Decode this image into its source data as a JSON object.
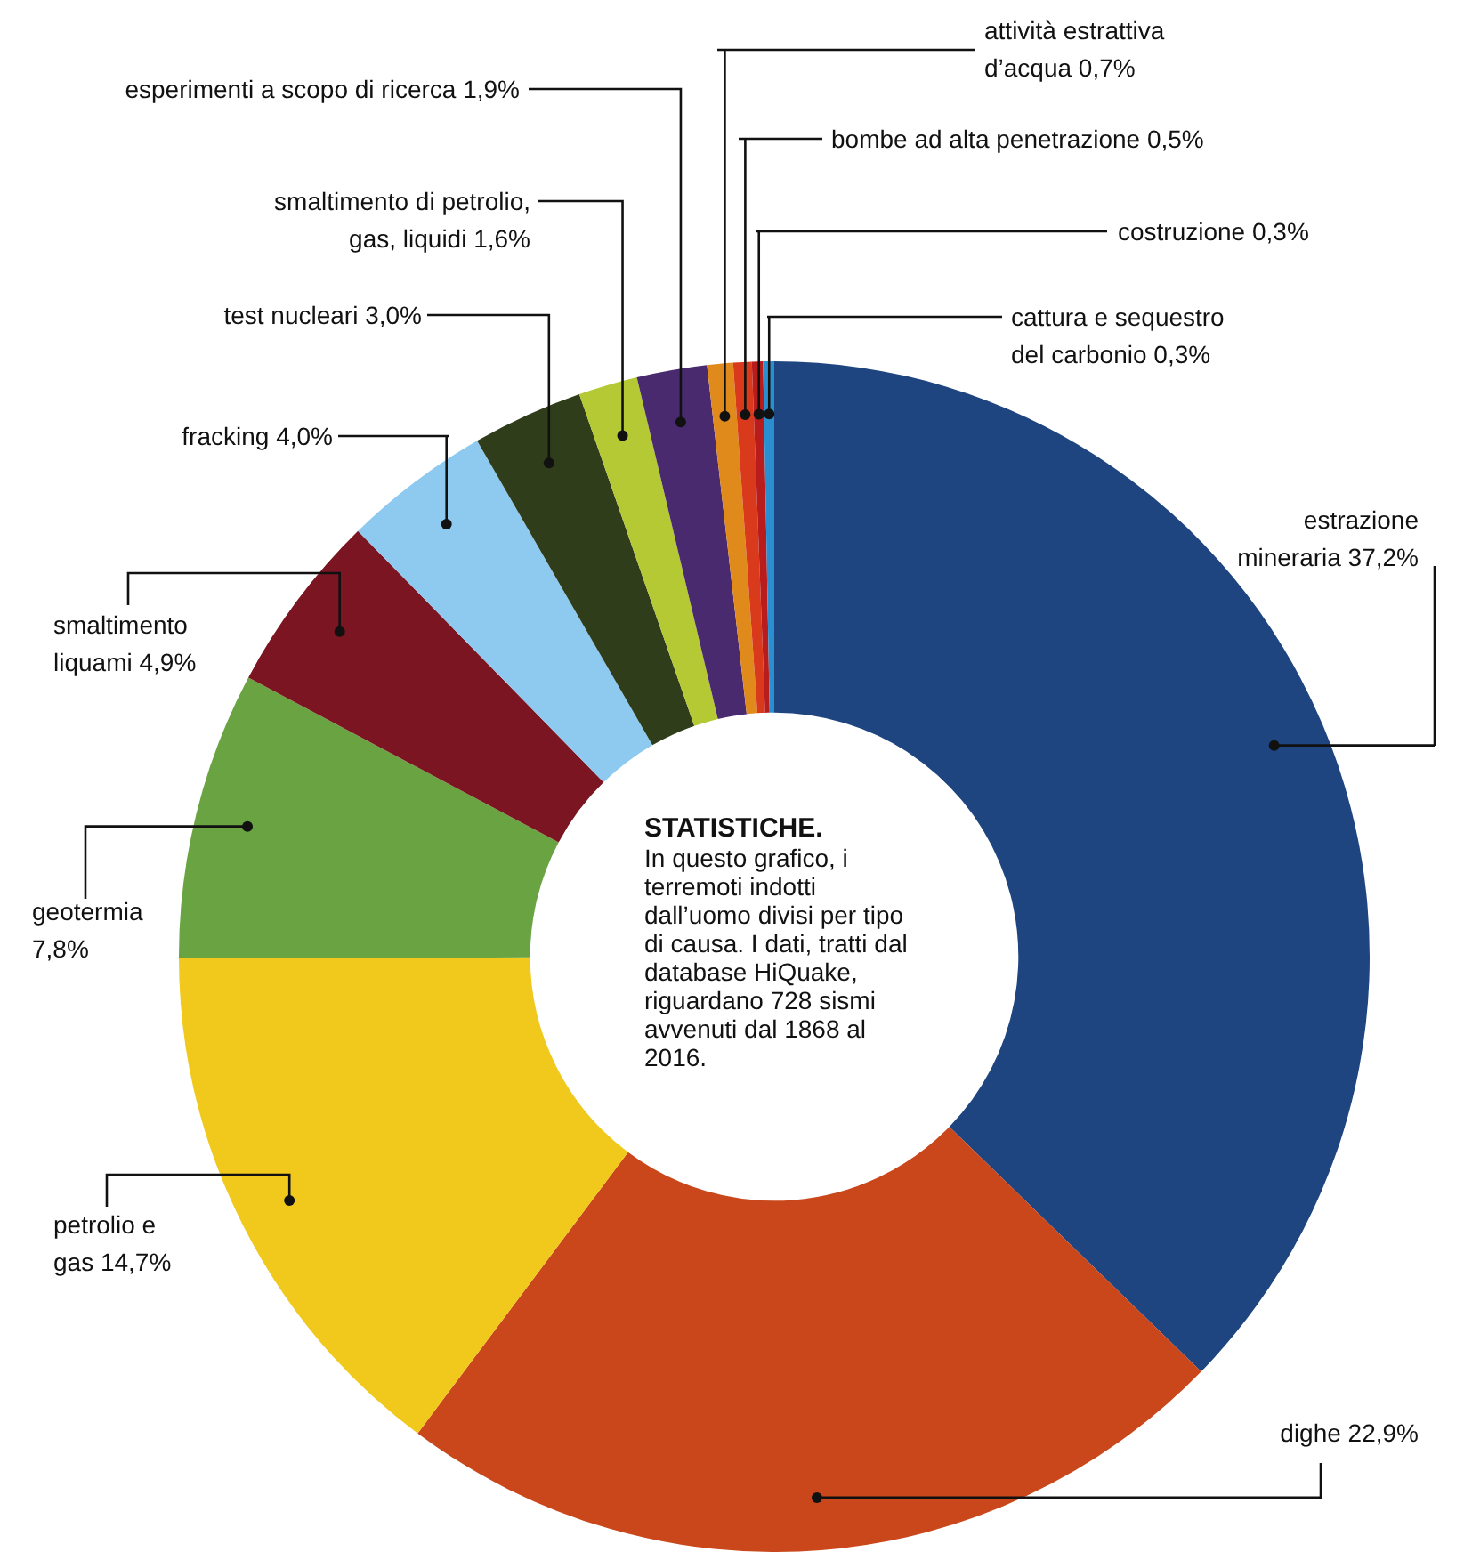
{
  "chart_data": {
    "type": "donut",
    "title": "STATISTICHE.",
    "annotations": [
      "In questo grafico, i terremoti indotti dall’uomo divisi per tipo di causa. I dati, tratti dal database HiQuake, riguardano 728 sismi avvenuti dal 1868 al 2016."
    ],
    "categories": [
      "estrazione\nmineraria",
      "dighe",
      "petrolio e\ngas",
      "geotermia",
      "smaltimento\nliquami",
      "fracking",
      "test nucleari",
      "smaltimento di petrolio,\ngas, liquidi",
      "esperimenti a scopo di ricerca",
      "attività estrattiva\nd’acqua",
      "bombe ad alta penetrazione",
      "costruzione",
      "cattura e sequestro\ndel carbonio"
    ],
    "values": [
      37.2,
      22.9,
      14.7,
      7.8,
      4.9,
      4.0,
      3.0,
      1.6,
      1.9,
      0.7,
      0.5,
      0.3,
      0.3
    ],
    "value_labels": [
      "37,2%",
      "22,9%",
      "14,7%",
      "7,8%",
      "4,9%",
      "4,0%",
      "3,0%",
      "1,6%",
      "1,9%",
      "0,7%",
      "0,5%",
      "0,3%",
      "0,3%"
    ],
    "colors": [
      "#1f4580",
      "#c9471b",
      "#f0c91c",
      "#6aa442",
      "#7c1522",
      "#8ec9ef",
      "#2f3d1a",
      "#b5c934",
      "#4a2a6e",
      "#e08a1c",
      "#d93a1b",
      "#b81c1c",
      "#2a8fd0"
    ],
    "legend": false
  }
}
